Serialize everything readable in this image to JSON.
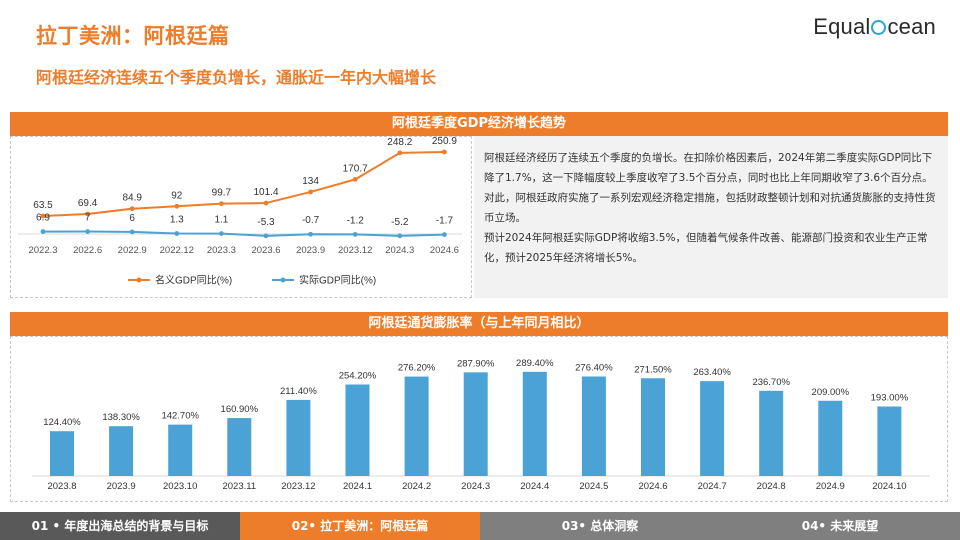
{
  "header": {
    "title": "拉丁美洲：阿根廷篇",
    "subtitle": "阿根廷经济连续五个季度负增长，通胀近一年内大幅增长",
    "logo_part1": "Equal",
    "logo_part2": "cean"
  },
  "gdp_panel": {
    "title": "阿根廷季度GDP经济增长趋势",
    "paragraph1": "阿根廷经济经历了连续五个季度的负增长。在扣除价格因素后，2024年第二季度实际GDP同比下降了1.7%，这一下降幅度较上季度收窄了3.5个百分点，同时也比上年同期收窄了3.6个百分点。对此，阿根廷政府实施了一系列宏观经济稳定措施，包括财政整顿计划和对抗通货膨胀的支持性货币立场。",
    "paragraph2": "预计2024年阿根廷实际GDP将收缩3.5%，但随着气候条件改善、能源部门投资和农业生产正常化，预计2025年经济将增长5%。"
  },
  "inflation_panel": {
    "title": "阿根廷通货膨胀率（与上年同月相比）"
  },
  "footer": {
    "tabs": [
      "01 • 年度出海总结的背景与目标",
      "02• 拉丁美洲：阿根廷篇",
      "03• 总体洞察",
      "04• 未来展望"
    ],
    "active_index": 1
  },
  "colors": {
    "accent": "#ee7d2b",
    "blue": "#4aa3d4"
  },
  "chart_data": [
    {
      "type": "line",
      "x": [
        "2022.3",
        "2022.6",
        "2022.9",
        "2022.12",
        "2023.3",
        "2023.6",
        "2023.9",
        "2023.12",
        "2024.3",
        "2024.6"
      ],
      "series": [
        {
          "name": "名义GDP同比(%)",
          "color": "#ee7d2b",
          "values": [
            63.5,
            69.4,
            84.9,
            92,
            99.7,
            101.4,
            134,
            170.7,
            248.2,
            250.9
          ]
        },
        {
          "name": "实际GDP同比(%)",
          "color": "#4aa3d4",
          "values": [
            6.9,
            7,
            6,
            1.3,
            1.1,
            -5.3,
            -0.7,
            -1.2,
            -5.2,
            -1.7
          ]
        }
      ],
      "legend": "bottom"
    },
    {
      "type": "bar",
      "categories": [
        "2023.8",
        "2023.9",
        "2023.10",
        "2023.11",
        "2023.12",
        "2024.1",
        "2024.2",
        "2024.3",
        "2024.4",
        "2024.5",
        "2024.6",
        "2024.7",
        "2024.8",
        "2024.9",
        "2024.10"
      ],
      "values": [
        124.4,
        138.3,
        142.7,
        160.9,
        211.4,
        254.2,
        276.2,
        287.9,
        289.4,
        276.4,
        271.5,
        263.4,
        236.7,
        209.0,
        193.0
      ],
      "labels": [
        "124.40%",
        "138.30%",
        "142.70%",
        "160.90%",
        "211.40%",
        "254.20%",
        "276.20%",
        "287.90%",
        "289.40%",
        "276.40%",
        "271.50%",
        "263.40%",
        "236.70%",
        "209.00%",
        "193.00%"
      ],
      "ylim": [
        0,
        300
      ],
      "color": "#4aa3d4"
    }
  ]
}
